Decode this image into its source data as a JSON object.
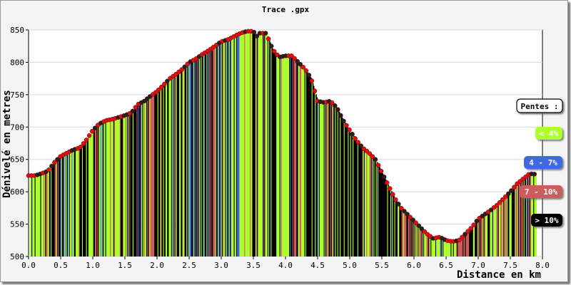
{
  "chart_data": {
    "type": "area",
    "title": "Trace .gpx",
    "xlabel": "Distance en km",
    "ylabel": "Dénivelé en metres",
    "xlim": [
      0,
      8
    ],
    "ylim": [
      500,
      850
    ],
    "x_ticks": [
      "0.0",
      "0.5",
      "1.0",
      "1.5",
      "2.0",
      "2.5",
      "3.0",
      "3.5",
      "4.0",
      "4.5",
      "5.0",
      "5.5",
      "6.0",
      "6.5",
      "7.0",
      "7.5",
      "8.0"
    ],
    "y_ticks": [
      "500",
      "550",
      "600",
      "650",
      "700",
      "750",
      "800",
      "850"
    ],
    "grid": true,
    "legend_title": "Pentes :",
    "legend_position": "right",
    "legend": [
      {
        "label": "< 4%",
        "color": "#adff2f",
        "text_color": "#ffffff"
      },
      {
        "label": "4 - 7%",
        "color": "#4169e1",
        "text_color": "#ffffff"
      },
      {
        "label": "7 - 10%",
        "color": "#cd5c5c",
        "text_color": "#ffffff"
      },
      {
        "label": "> 10%",
        "color": "#000000",
        "text_color": "#ffffff"
      }
    ],
    "profile": {
      "x": [
        0.0,
        0.1,
        0.2,
        0.3,
        0.4,
        0.5,
        0.6,
        0.7,
        0.8,
        0.9,
        1.0,
        1.1,
        1.2,
        1.3,
        1.4,
        1.5,
        1.6,
        1.7,
        1.8,
        1.9,
        2.0,
        2.1,
        2.2,
        2.3,
        2.4,
        2.5,
        2.6,
        2.7,
        2.8,
        2.9,
        3.0,
        3.1,
        3.2,
        3.3,
        3.4,
        3.5,
        3.55,
        3.6,
        3.7,
        3.8,
        3.9,
        4.0,
        4.1,
        4.2,
        4.3,
        4.4,
        4.5,
        4.6,
        4.7,
        4.8,
        4.9,
        5.0,
        5.1,
        5.2,
        5.3,
        5.4,
        5.5,
        5.6,
        5.7,
        5.8,
        5.9,
        6.0,
        6.1,
        6.2,
        6.3,
        6.4,
        6.5,
        6.6,
        6.7,
        6.8,
        6.9,
        7.0,
        7.1,
        7.2,
        7.3,
        7.4,
        7.5,
        7.6,
        7.7,
        7.8,
        7.9
      ],
      "y": [
        625,
        625,
        628,
        632,
        645,
        655,
        660,
        665,
        668,
        680,
        695,
        705,
        710,
        712,
        715,
        718,
        722,
        735,
        740,
        748,
        755,
        765,
        775,
        782,
        790,
        800,
        805,
        812,
        818,
        825,
        832,
        835,
        840,
        845,
        848,
        848,
        840,
        845,
        845,
        820,
        808,
        810,
        810,
        800,
        790,
        775,
        740,
        738,
        740,
        730,
        710,
        695,
        680,
        668,
        660,
        650,
        630,
        610,
        590,
        575,
        565,
        555,
        545,
        535,
        528,
        530,
        525,
        523,
        525,
        535,
        545,
        558,
        565,
        572,
        580,
        590,
        600,
        612,
        620,
        628,
        627
      ],
      "slope_colors": [
        "#adff2f",
        "#4169e1",
        "#cd5c5c",
        "#000000"
      ]
    }
  }
}
